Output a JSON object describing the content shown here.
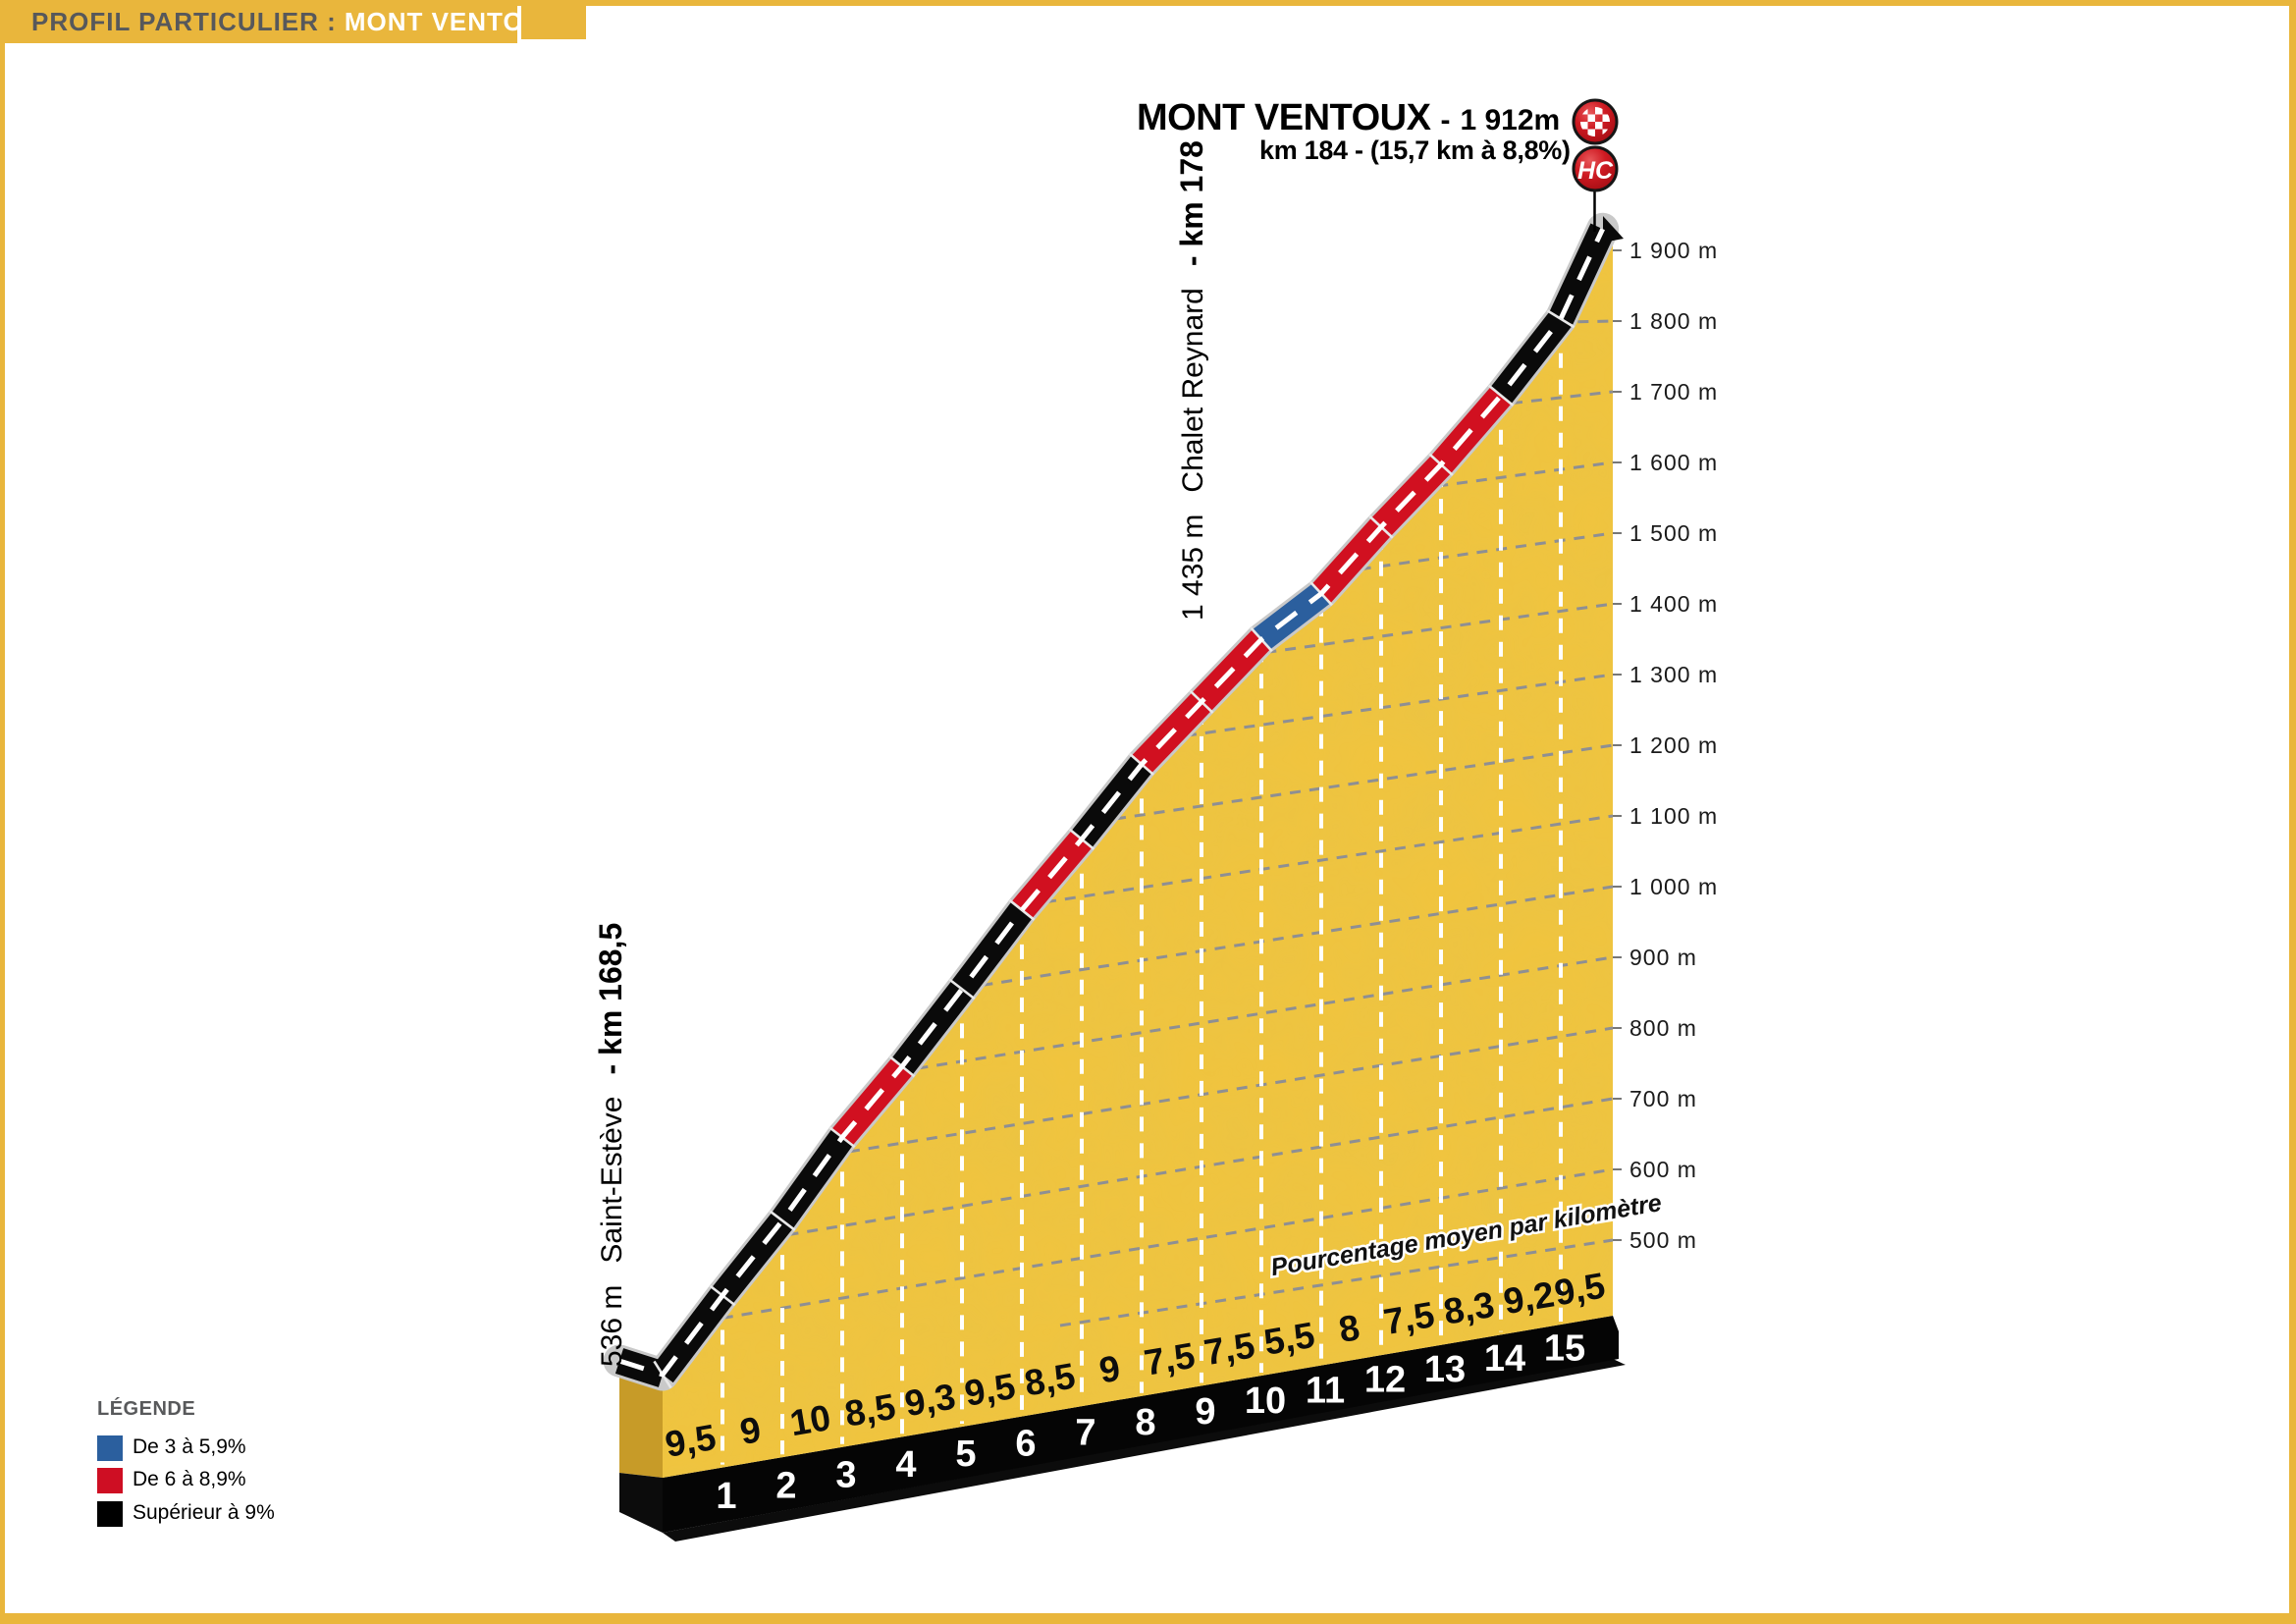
{
  "banner": {
    "prefix": "PROFIL PARTICULIER :",
    "highlight": "MONT VENTOUX"
  },
  "title": {
    "name": "MONT VENTOUX",
    "dash": "-",
    "altitude": "1 912m",
    "line2": "km 184 - (15,7 km à 8,8%)"
  },
  "summit_markers": {
    "finish_icon": "checkered-flag",
    "hc_label": "HC"
  },
  "start_label": {
    "altitude": "536 m",
    "place": "Saint-Estève",
    "km": "- km 168,5"
  },
  "mid_label": {
    "altitude": "1 435 m",
    "place": "Chalet Reynard",
    "km": "- km 178"
  },
  "axis_note": "Pourcentage moyen par kilomètre",
  "legend": {
    "title": "LÉGENDE",
    "items": [
      {
        "label": "De 3 à 5,9%",
        "color": "#2B5F9E",
        "category": "3-5.9"
      },
      {
        "label": "De 6 à 8,9%",
        "color": "#CE0E23",
        "category": "6-8.9"
      },
      {
        "label": "Supérieur à 9%",
        "color": "#000000",
        "category": "sup9"
      }
    ]
  },
  "colors": {
    "gold": "#E9B63C",
    "mountain_yellow": "#F1C43E",
    "mountain_side": "#C79B28",
    "band_black": "#0A0A0A",
    "band_red": "#D11020",
    "band_blue": "#2B5F9E",
    "band_outline": "#C9C9C9",
    "gridline": "#8E8F93",
    "circle_red_light": "#E2423F",
    "circle_red_dark": "#AE0D15",
    "circle_ring": "#161616"
  },
  "chart_data": {
    "type": "area",
    "title": "MONT VENTOUX",
    "summit_elevation_m": 1912,
    "summit_km": 184,
    "climb_length_km": 15.7,
    "avg_gradient_pct": 8.8,
    "climb_category": "HC",
    "start": {
      "name": "Saint-Estève",
      "elevation_m": 536,
      "km": 168.5
    },
    "waypoint": {
      "name": "Chalet Reynard",
      "elevation_m": 1435,
      "km": 178
    },
    "x_km_tick_labels": [
      "1",
      "2",
      "3",
      "4",
      "5",
      "6",
      "7",
      "8",
      "9",
      "10",
      "11",
      "12",
      "13",
      "14",
      "15"
    ],
    "gradient_labels": [
      "9,5",
      "9",
      "10",
      "8,5",
      "9,3",
      "9,5",
      "8,5",
      "9",
      "7,5",
      "7,5",
      "5,5",
      "8",
      "7,5",
      "8,3",
      "9,2",
      "9,5"
    ],
    "gradient_values": [
      9.5,
      9,
      10,
      8.5,
      9.3,
      9.5,
      8.5,
      9,
      7.5,
      7.5,
      5.5,
      8,
      7.5,
      8.3,
      9.2,
      9.5
    ],
    "segment_categories": [
      "sup9",
      "sup9",
      "sup9",
      "6-8.9",
      "sup9",
      "sup9",
      "6-8.9",
      "sup9",
      "6-8.9",
      "6-8.9",
      "3-5.9",
      "6-8.9",
      "6-8.9",
      "6-8.9",
      "sup9",
      "sup9"
    ],
    "altitude_profile": {
      "km": [
        0,
        1,
        2,
        3,
        4,
        5,
        6,
        7,
        8,
        9,
        10,
        11,
        12,
        13,
        14,
        15,
        15.7
      ],
      "elevation_m": [
        536,
        631,
        721,
        821,
        906,
        999,
        1094,
        1179,
        1269,
        1344,
        1419,
        1474,
        1554,
        1629,
        1712,
        1804,
        1912
      ]
    },
    "y_axis": {
      "unit": "m",
      "values": [
        1900,
        1800,
        1700,
        1600,
        1500,
        1400,
        1300,
        1200,
        1100,
        1000,
        900,
        800,
        700,
        600,
        500
      ],
      "labels": [
        "1 900 m",
        "1 800 m",
        "1 700 m",
        "1 600 m",
        "1 500 m",
        "1 400 m",
        "1 300 m",
        "1 200 m",
        "1 100 m",
        "1 000 m",
        "900 m",
        "800 m",
        "700 m",
        "600 m",
        "500 m"
      ],
      "grid": true
    },
    "legend_position": "bottom-left"
  }
}
